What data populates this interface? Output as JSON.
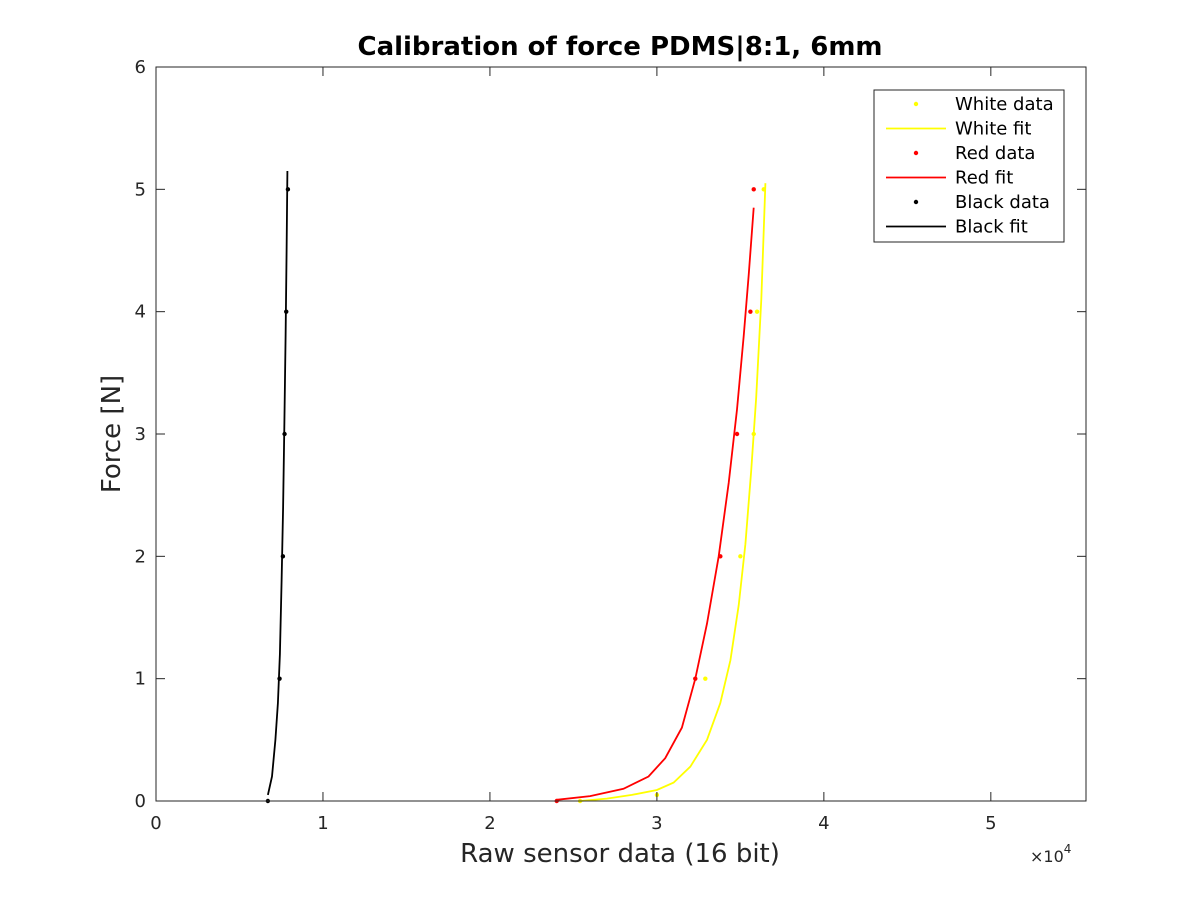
{
  "chart_data": {
    "type": "scatter",
    "title": "Calibration of force PDMS|8:1, 6mm",
    "xlabel": "Raw sensor data (16 bit)",
    "ylabel": "Force [N]",
    "x_multiplier_label": "×10",
    "x_multiplier_exponent": "4",
    "xlim": [
      0,
      55700
    ],
    "ylim": [
      0,
      6
    ],
    "x_ticks": [
      0,
      10000,
      20000,
      30000,
      40000,
      50000
    ],
    "x_tick_labels": [
      "0",
      "1",
      "2",
      "3",
      "4",
      "5"
    ],
    "y_ticks": [
      0,
      1,
      2,
      3,
      4,
      5,
      6
    ],
    "y_tick_labels": [
      "0",
      "1",
      "2",
      "3",
      "4",
      "5",
      "6"
    ],
    "grid": false,
    "legend_position": "top-right",
    "series": [
      {
        "name": "White data",
        "kind": "points",
        "color": "#ffff00",
        "x": [
          25400,
          30000,
          32900,
          35000,
          35800,
          36000,
          36400
        ],
        "y": [
          0,
          0.05,
          1,
          2,
          3,
          4,
          5
        ]
      },
      {
        "name": "White fit",
        "kind": "line",
        "color": "#ffff00",
        "x": [
          25400,
          27000,
          28500,
          30000,
          31000,
          32000,
          33000,
          33800,
          34400,
          34900,
          35300,
          35650,
          35950,
          36250,
          36500
        ],
        "y": [
          0,
          0.02,
          0.05,
          0.09,
          0.15,
          0.28,
          0.5,
          0.8,
          1.15,
          1.6,
          2.1,
          2.7,
          3.3,
          4.1,
          5.05
        ]
      },
      {
        "name": "Red data",
        "kind": "points",
        "color": "#ff0000",
        "x": [
          24000,
          32300,
          33800,
          34800,
          35600,
          35800
        ],
        "y": [
          0,
          1,
          2,
          3,
          4,
          5
        ]
      },
      {
        "name": "Red fit",
        "kind": "line",
        "color": "#ff0000",
        "x": [
          24000,
          26000,
          28000,
          29500,
          30500,
          31500,
          32300,
          33000,
          33700,
          34300,
          34800,
          35200,
          35500,
          35800
        ],
        "y": [
          0.01,
          0.04,
          0.1,
          0.2,
          0.35,
          0.6,
          1.0,
          1.45,
          2.0,
          2.6,
          3.2,
          3.8,
          4.3,
          4.85
        ]
      },
      {
        "name": "Black data",
        "kind": "points",
        "color": "#000000",
        "x": [
          6700,
          7400,
          7600,
          7700,
          7800,
          7900
        ],
        "y": [
          0,
          1,
          2,
          3,
          4,
          5
        ]
      },
      {
        "name": "Black fit",
        "kind": "line",
        "color": "#000000",
        "x": [
          6700,
          6950,
          7150,
          7300,
          7420,
          7520,
          7610,
          7690,
          7760,
          7820,
          7870
        ],
        "y": [
          0.05,
          0.2,
          0.5,
          0.8,
          1.2,
          1.8,
          2.4,
          3.1,
          3.8,
          4.5,
          5.15
        ]
      }
    ]
  }
}
